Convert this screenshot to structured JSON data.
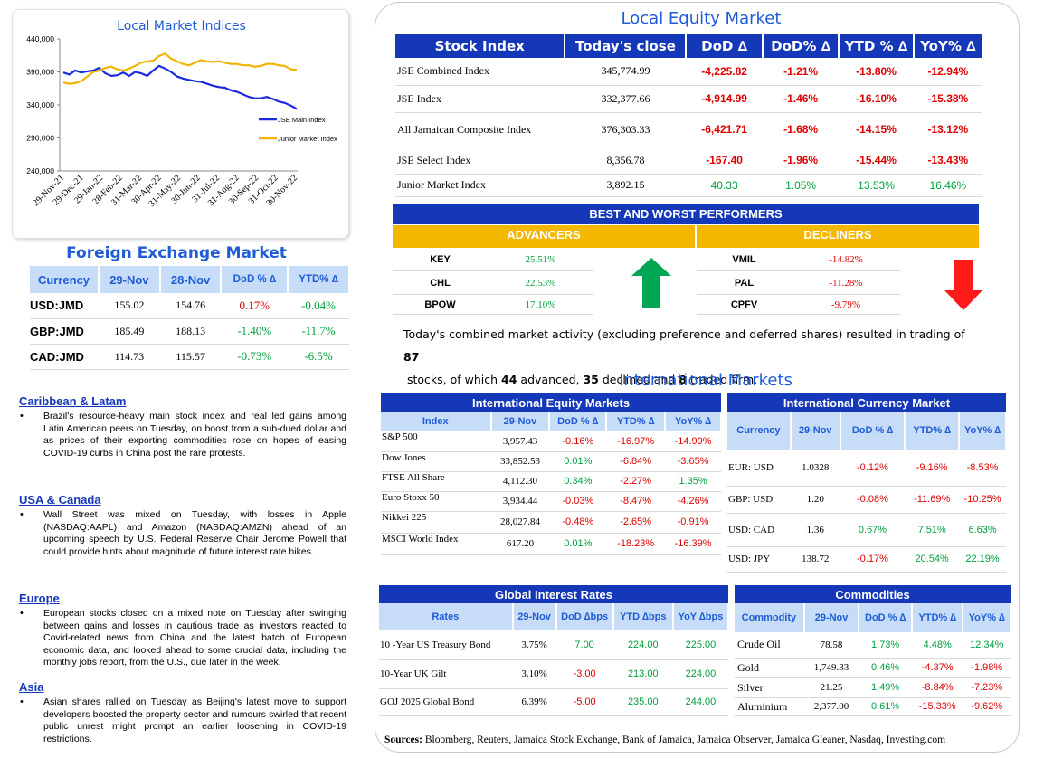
{
  "chart": {
    "title": "Local Market Indices",
    "chart_data": {
      "type": "line",
      "x_tick_labels": [
        "29-Nov-21",
        "29-Dec-21",
        "29-Jan-22",
        "28-Feb-22",
        "31-Mar-22",
        "30-Apr-22",
        "31-May-22",
        "30-Jun-22",
        "31-Jul-22",
        "31-Aug-22",
        "30-Sep-22",
        "31-Oct-22",
        "30-Nov-22"
      ],
      "y_tick_labels": [
        "440,000",
        "390,000",
        "340,000",
        "290,000",
        "240,000"
      ],
      "ylim": [
        240000,
        440000
      ],
      "series": [
        {
          "name": "JSE Main Index",
          "color": "#1a2be0",
          "values": [
            389000,
            386000,
            392000,
            389000,
            391000,
            392000,
            396000,
            388000,
            384000,
            385000,
            389000,
            384000,
            390000,
            388000,
            384000,
            392000,
            399000,
            395000,
            390000,
            383000,
            380000,
            378000,
            376000,
            375000,
            372000,
            369000,
            367000,
            366000,
            362000,
            360000,
            356000,
            352000,
            350000,
            350000,
            352000,
            349000,
            345000,
            343000,
            339000,
            334000
          ]
        },
        {
          "name": "Junior Market Index",
          "color": "#f2b400",
          "values": [
            374000,
            372000,
            373000,
            376000,
            383000,
            390000,
            392000,
            396000,
            398000,
            394000,
            392000,
            395000,
            399000,
            404000,
            406000,
            407000,
            414000,
            418000,
            410000,
            406000,
            402000,
            400000,
            404000,
            408000,
            406000,
            405000,
            406000,
            404000,
            402000,
            402000,
            400000,
            400000,
            398000,
            399000,
            402000,
            402000,
            400000,
            399000,
            394000,
            393000
          ]
        }
      ],
      "legend_position": "right"
    }
  },
  "fx": {
    "title": "Foreign Exchange Market",
    "headers": [
      "Currency",
      "29-Nov",
      "28-Nov",
      "DoD % ∆",
      "YTD% ∆"
    ],
    "rows": [
      {
        "c": "USD:JMD",
        "a": "155.02",
        "b": "154.76",
        "d": "0.17%",
        "y": "-0.04%",
        "dc": "red",
        "yc": "green"
      },
      {
        "c": "GBP:JMD",
        "a": "185.49",
        "b": "188.13",
        "d": "-1.40%",
        "y": "-11.7%",
        "dc": "green",
        "yc": "green"
      },
      {
        "c": "CAD:JMD",
        "a": "114.73",
        "b": "115.57",
        "d": "-0.73%",
        "y": "-6.5%",
        "dc": "green",
        "yc": "green"
      }
    ]
  },
  "news": [
    {
      "head": "Caribbean & Latam",
      "text": "Brazil's resource-heavy main stock index and real led gains among Latin American peers on Tuesday, on boost from a sub-dued dollar and as prices of their exporting commodities rose on hopes of easing COVID-19 curbs in China post the rare protests."
    },
    {
      "head": "USA & Canada",
      "text": "Wall Street was mixed on Tuesday, with losses in Apple (NASDAQ:AAPL) and Amazon (NASDAQ:AMZN) ahead of an upcoming speech by U.S. Federal Reserve Chair Jerome Powell that could provide hints about magnitude of future interest rate hikes."
    },
    {
      "head": "Europe",
      "text": "European stocks closed on a mixed note on Tuesday after swinging between gains and losses in cautious trade as investors reacted to Covid-related news from China and the latest batch of European economic data, and looked ahead to some crucial data, including the monthly jobs report, from the U.S., due later in the week."
    },
    {
      "head": "Asia",
      "text": "Asian shares rallied on Tuesday as Beijing's latest move to support developers boosted the property sector and rumours swirled that recent public unrest might prompt an earlier loosening in COVID-19 restrictions."
    }
  ],
  "equity": {
    "title": "Local Equity Market",
    "headers": [
      "Stock Index",
      "Today's close",
      "DoD  ∆",
      "DoD% ∆",
      "YTD % ∆",
      "YoY% ∆"
    ],
    "rows": [
      {
        "n": "JSE Combined Index",
        "c": "345,774.99",
        "d": "-4,225.82",
        "p": "-1.21%",
        "y": "-13.80%",
        "o": "-12.94%",
        "cl": "red"
      },
      {
        "n": "JSE Index",
        "c": "332,377.66",
        "d": "-4,914.99",
        "p": "-1.46%",
        "y": "-16.10%",
        "o": "-15.38%",
        "cl": "red"
      },
      {
        "n": "All Jamaican Composite Index",
        "c": "376,303.33",
        "d": "-6,421.71",
        "p": "-1.68%",
        "y": "-14.15%",
        "o": "-13.12%",
        "cl": "red"
      },
      {
        "n": "JSE Select Index",
        "c": "8,356.78",
        "d": "-167.40",
        "p": "-1.96%",
        "y": "-15.44%",
        "o": "-13.43%",
        "cl": "red"
      },
      {
        "n": "Junior Market Index",
        "c": "3,892.15",
        "d": "40.33",
        "p": "1.05%",
        "y": "13.53%",
        "o": "16.46%",
        "cl": "green"
      }
    ]
  },
  "performers": {
    "title": "BEST AND WORST PERFORMERS",
    "adv_label": "ADVANCERS",
    "dec_label": "DECLINERS",
    "advancers": [
      {
        "s": "KEY",
        "v": "25.51%"
      },
      {
        "s": "CHL",
        "v": "22.53%"
      },
      {
        "s": "BPOW",
        "v": "17.10%"
      }
    ],
    "decliners": [
      {
        "s": "VMIL",
        "v": "-14.82%"
      },
      {
        "s": "PAL",
        "v": "-11.28%"
      },
      {
        "s": "CPFV",
        "v": "-9.79%"
      }
    ]
  },
  "summary": {
    "p1": "Today's combined market activity (excluding preference and deferred shares) resulted in trading of ",
    "n1": "87",
    "p2": "stocks, of which ",
    "n2": "44",
    "p3": " advanced, ",
    "n3": "35",
    "p4": " declined and ",
    "n4": "8",
    "p5": " traded firm."
  },
  "intl_title": "International Markets",
  "intl_equity": {
    "title": "International Equity Markets",
    "headers": [
      "Index",
      "29-Nov",
      "DoD % ∆",
      "YTD% ∆",
      "YoY% ∆"
    ],
    "rows": [
      {
        "n": "S&P 500",
        "v": "3,957.43",
        "d": "-0.16%",
        "y": "-16.97%",
        "o": "-14.99%",
        "dc": "red",
        "yc": "red",
        "oc": "red"
      },
      {
        "n": "Dow Jones",
        "v": "33,852.53",
        "d": "0.01%",
        "y": "-6.84%",
        "o": "-3.65%",
        "dc": "green",
        "yc": "red",
        "oc": "red"
      },
      {
        "n": "FTSE All Share",
        "v": "4,112.30",
        "d": "0.34%",
        "y": "-2.27%",
        "o": "1.35%",
        "dc": "green",
        "yc": "red",
        "oc": "green"
      },
      {
        "n": "Euro Stoxx 50",
        "v": "3,934.44",
        "d": "-0.03%",
        "y": "-8.47%",
        "o": "-4.26%",
        "dc": "red",
        "yc": "red",
        "oc": "red"
      },
      {
        "n": "Nikkei 225",
        "v": "28,027.84",
        "d": "-0.48%",
        "y": "-2.65%",
        "o": "-0.91%",
        "dc": "red",
        "yc": "red",
        "oc": "red"
      },
      {
        "n": "MSCI World Index",
        "v": "617.20",
        "d": "0.01%",
        "y": "-18.23%",
        "o": "-16.39%",
        "dc": "green",
        "yc": "red",
        "oc": "red"
      }
    ]
  },
  "intl_currency": {
    "title": "International Currency Market",
    "headers": [
      "Currency",
      "29-Nov",
      "DoD % ∆",
      "YTD% ∆",
      "YoY% ∆"
    ],
    "rows": [
      {
        "n": "EUR: USD",
        "v": "1.0328",
        "d": "-0.12%",
        "y": "-9.16%",
        "o": "-8.53%",
        "dc": "red",
        "yc": "red",
        "oc": "red"
      },
      {
        "n": "GBP: USD",
        "v": "1.20",
        "d": "-0.08%",
        "y": "-11.69%",
        "o": "-10.25%",
        "dc": "red",
        "yc": "red",
        "oc": "red"
      },
      {
        "n": "USD: CAD",
        "v": "1.36",
        "d": "0.67%",
        "y": "7.51%",
        "o": "6.63%",
        "dc": "green",
        "yc": "green",
        "oc": "green"
      },
      {
        "n": "USD: JPY",
        "v": "138.72",
        "d": "-0.17%",
        "y": "20.54%",
        "o": "22.19%",
        "dc": "red",
        "yc": "green",
        "oc": "green"
      }
    ]
  },
  "rates": {
    "title": "Global Interest Rates",
    "headers": [
      "Rates",
      "29-Nov",
      "DoD ∆bps",
      "YTD ∆bps",
      "YoY ∆bps"
    ],
    "rows": [
      {
        "n": "10 -Year US Treasury Bond",
        "v": "3.75%",
        "d": "7.00",
        "y": "224.00",
        "o": "225.00",
        "dc": "green"
      },
      {
        "n": "10-Year UK Gilt",
        "v": "3.10%",
        "d": "-3.00",
        "y": "213.00",
        "o": "224.00",
        "dc": "red"
      },
      {
        "n": "GOJ 2025 Global Bond",
        "v": "6.39%",
        "d": "-5.00",
        "y": "235.00",
        "o": "244.00",
        "dc": "red"
      }
    ]
  },
  "commod": {
    "title": "Commodities",
    "headers": [
      "Commodity",
      "29-Nov",
      "DoD % ∆",
      "YTD% ∆",
      "YoY% ∆"
    ],
    "rows": [
      {
        "n": "Crude Oil",
        "v": "78.58",
        "d": "1.73%",
        "y": "4.48%",
        "o": "12.34%",
        "dc": "green",
        "yc": "green",
        "oc": "green"
      },
      {
        "n": "Gold",
        "v": "1,749.33",
        "d": "0.46%",
        "y": "-4.37%",
        "o": "-1.98%",
        "dc": "green",
        "yc": "red",
        "oc": "red"
      },
      {
        "n": "Silver",
        "v": "21.25",
        "d": "1.49%",
        "y": "-8.84%",
        "o": "-7.23%",
        "dc": "green",
        "yc": "red",
        "oc": "red"
      },
      {
        "n": "Aluminium",
        "v": "2,377.00",
        "d": "0.61%",
        "y": "-15.33%",
        "o": "-9.62%",
        "dc": "green",
        "yc": "red",
        "oc": "red"
      }
    ]
  },
  "sources": {
    "label": "Sources:",
    "text": " Bloomberg, Reuters, Jamaica Stock Exchange, Bank of Jamaica, Jamaica Observer, Jamaica Gleaner, Nasdaq, Investing.com"
  }
}
